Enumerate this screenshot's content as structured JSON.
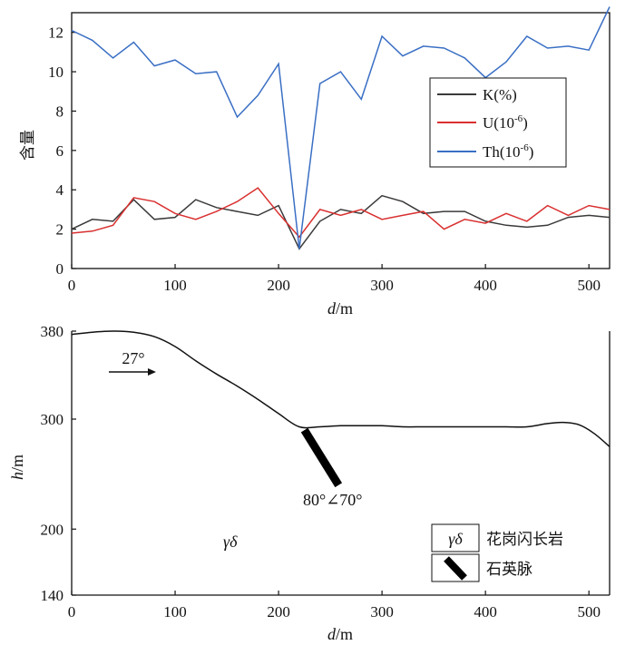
{
  "chart_data": [
    {
      "type": "line",
      "xlabel_italic": "d",
      "xlabel_unit": "/m",
      "ylabel": "含量",
      "xlim": [
        0,
        520
      ],
      "ylim": [
        0,
        13
      ],
      "xticks": [
        "0",
        "100",
        "200",
        "300",
        "400",
        "500"
      ],
      "yticks": [
        "0",
        "2",
        "4",
        "6",
        "8",
        "10",
        "12"
      ],
      "legend_position": "right-middle",
      "x": [
        0,
        20,
        40,
        60,
        80,
        100,
        120,
        140,
        160,
        180,
        200,
        220,
        240,
        260,
        280,
        300,
        320,
        340,
        360,
        380,
        400,
        420,
        440,
        460,
        480,
        500,
        520
      ],
      "series": [
        {
          "name": "K(%)",
          "name_base": "K(%)",
          "name_sup": "",
          "name_end": "",
          "color": "#3a3a3a",
          "values": [
            2.0,
            2.5,
            2.4,
            3.5,
            2.5,
            2.6,
            3.5,
            3.1,
            2.9,
            2.7,
            3.2,
            1.0,
            2.4,
            3.0,
            2.8,
            3.7,
            3.4,
            2.8,
            2.9,
            2.9,
            2.4,
            2.2,
            2.1,
            2.2,
            2.6,
            2.7,
            2.6
          ]
        },
        {
          "name": "U(10-6)",
          "name_base": "U(10",
          "name_sup": "-6",
          "name_end": ")",
          "color": "#d93030",
          "values": [
            1.8,
            1.9,
            2.2,
            3.6,
            3.4,
            2.8,
            2.5,
            2.9,
            3.4,
            4.1,
            2.8,
            1.6,
            3.0,
            2.7,
            3.0,
            2.5,
            2.7,
            2.9,
            2.0,
            2.5,
            2.3,
            2.8,
            2.4,
            3.2,
            2.7,
            3.2,
            3.0
          ]
        },
        {
          "name": "Th(10-6)",
          "name_base": "Th(10",
          "name_sup": "-6",
          "name_end": ")",
          "color": "#3a6fc4",
          "values": [
            12.1,
            11.6,
            10.7,
            11.5,
            10.3,
            10.6,
            9.9,
            10.0,
            7.7,
            8.8,
            10.4,
            1.0,
            9.4,
            10.0,
            8.6,
            11.8,
            10.8,
            11.3,
            11.2,
            10.7,
            9.7,
            10.5,
            11.8,
            11.2,
            11.3,
            11.1,
            13.3
          ]
        }
      ]
    },
    {
      "type": "line",
      "xlabel_italic": "d",
      "xlabel_unit": "/m",
      "ylabel_italic": "h",
      "ylabel_unit": "/m",
      "xlim": [
        0,
        520
      ],
      "ylim": [
        140,
        380
      ],
      "xticks": [
        "0",
        "100",
        "200",
        "300",
        "400",
        "500"
      ],
      "yticks": [
        "140",
        "200",
        "300",
        "380"
      ],
      "profile": {
        "x": [
          0,
          20,
          40,
          60,
          80,
          100,
          120,
          140,
          160,
          180,
          200,
          220,
          240,
          260,
          280,
          300,
          320,
          340,
          360,
          380,
          400,
          420,
          440,
          460,
          475,
          490,
          505,
          520
        ],
        "y": [
          377,
          379,
          380,
          379,
          375,
          366,
          353,
          341,
          330,
          318,
          305,
          293,
          293,
          294,
          294,
          294,
          293,
          293,
          293,
          293,
          293,
          293,
          293,
          296,
          297,
          295,
          287,
          275
        ]
      },
      "vein": {
        "start": [
          225,
          290
        ],
        "end": [
          258,
          240
        ]
      },
      "dip_label": "27°",
      "attitude_label": "80°∠70°",
      "rock_symbol": "γδ",
      "legend": [
        {
          "symbol": "γδ",
          "label": "花岗闪长岩"
        },
        {
          "symbol": "vein",
          "label": "石英脉"
        }
      ]
    }
  ]
}
